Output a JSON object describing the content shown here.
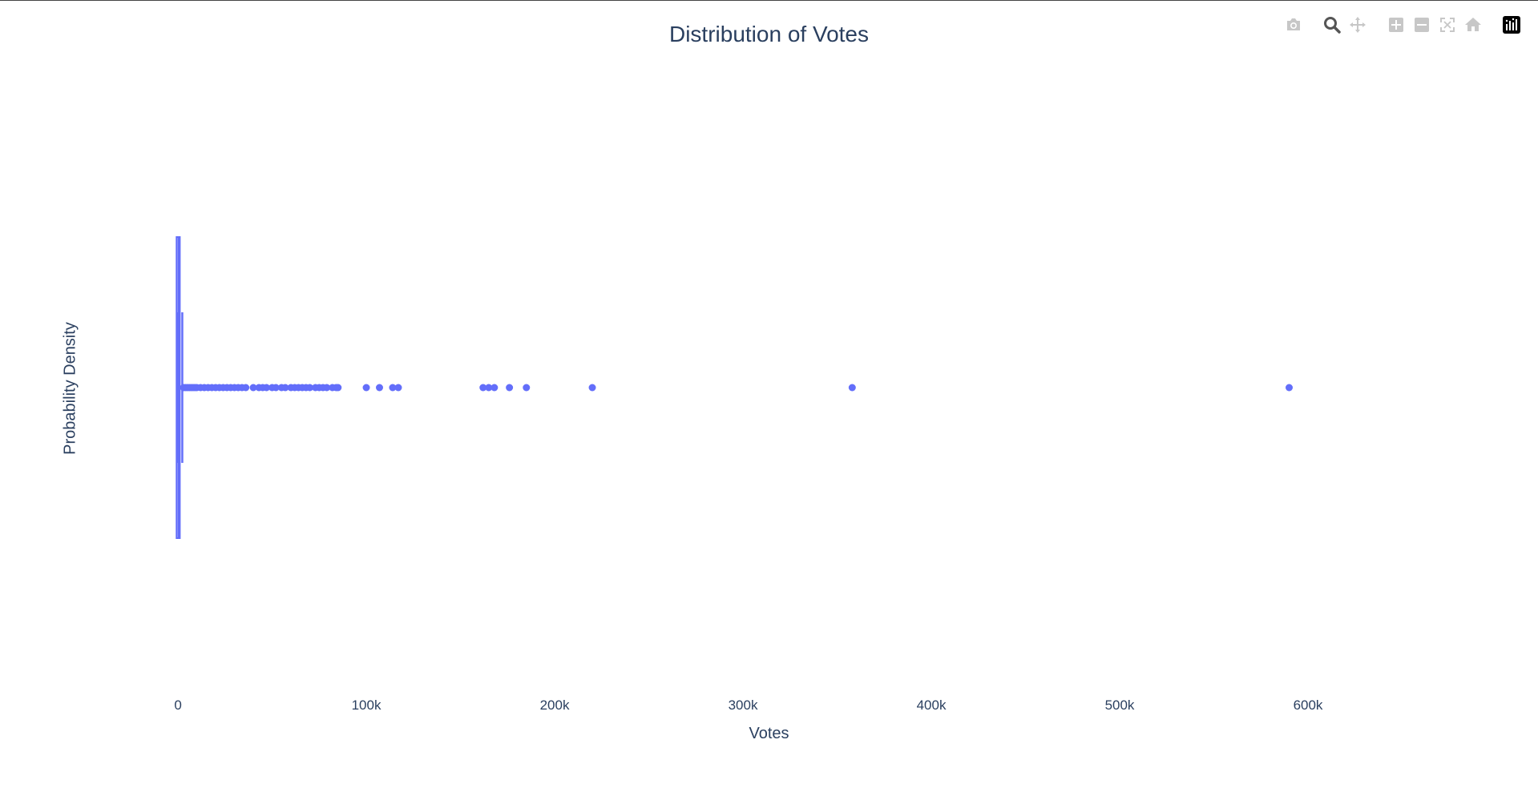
{
  "chart_data": {
    "type": "box",
    "title": "Distribution of Votes",
    "xlabel": "Votes",
    "ylabel": "Probability Density",
    "orientation": "horizontal",
    "xlim": [
      -3000,
      640000
    ],
    "x_ticks": [
      0,
      100000,
      200000,
      300000,
      400000,
      500000,
      600000
    ],
    "x_tick_labels": [
      "0",
      "100k",
      "200k",
      "300k",
      "400k",
      "500k",
      "600k"
    ],
    "series_color": "#636efa",
    "box": {
      "min": 0,
      "q1": 100,
      "median": 300,
      "q3": 1000,
      "upper_fence": 2300
    },
    "outliers": [
      3000,
      4000,
      5000,
      6000,
      7000,
      8000,
      9000,
      10000,
      12000,
      14000,
      16000,
      18000,
      20000,
      22000,
      24000,
      26000,
      28000,
      30000,
      32000,
      34000,
      36000,
      40000,
      43000,
      45000,
      47000,
      50000,
      52000,
      55000,
      57000,
      60000,
      62000,
      64000,
      66000,
      68000,
      70000,
      73000,
      75000,
      77000,
      79000,
      82000,
      84000,
      85000,
      100000,
      107000,
      114000,
      117000,
      162000,
      165000,
      168000,
      176000,
      185000,
      220000,
      358000,
      590000
    ]
  },
  "modebar": {
    "buttons": [
      "camera-icon",
      "zoom-icon",
      "pan-icon",
      "zoom-in-icon",
      "zoom-out-icon",
      "autoscale-icon",
      "reset-axes-icon",
      "plotly-logo-icon"
    ]
  }
}
